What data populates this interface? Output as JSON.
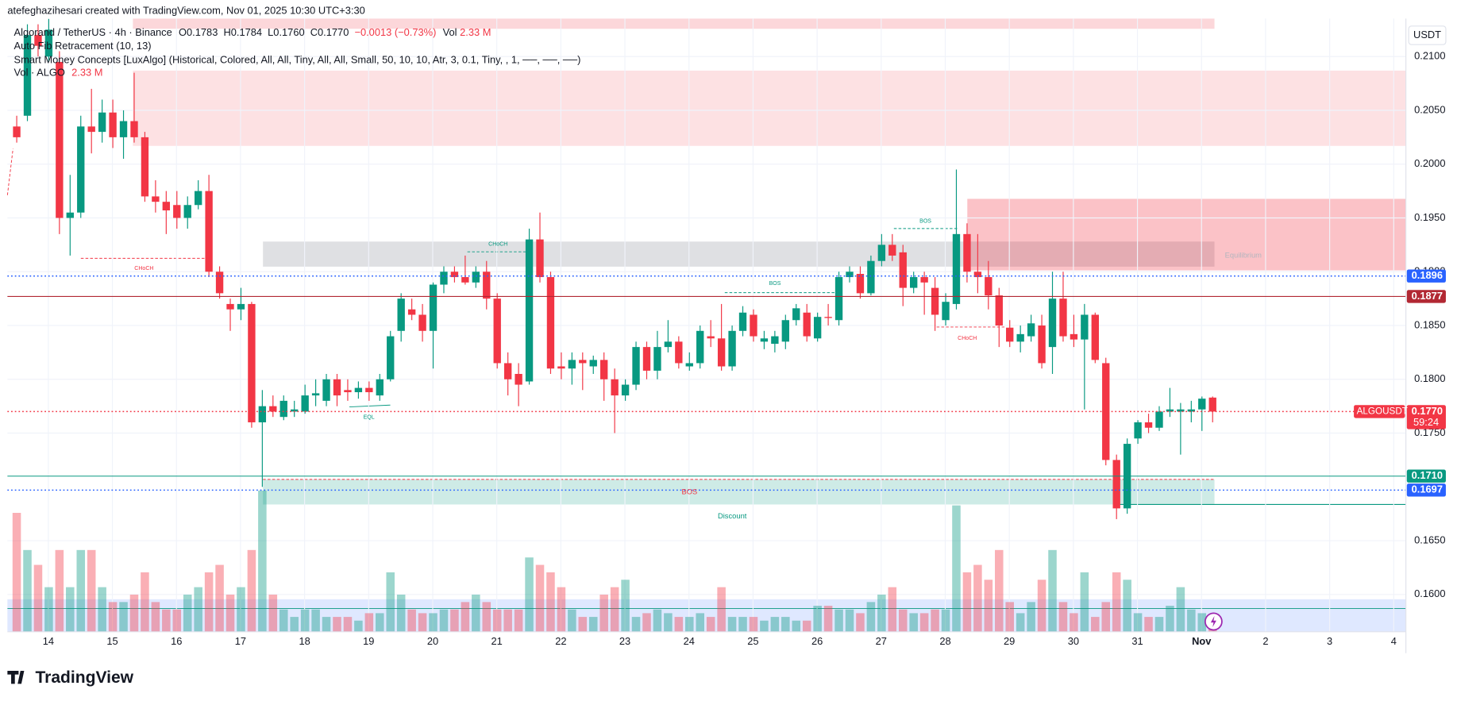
{
  "header": "atefeghazihesari created with TradingView.com, Nov 01, 2025 10:30 UTC+3:30",
  "legend": {
    "symbol": "Algorand / TetherUS · 4h · Binance",
    "open": "O0.1783",
    "high": "H0.1784",
    "low": "L0.1760",
    "close": "C0.1770",
    "change": "−0.0013 (−0.73%)",
    "volume_label": "Vol",
    "volume_value": "2.33 M",
    "indicators": [
      "Auto Fib Retracement (10, 13)",
      "Smart Money Concepts [LuxAlgo] (Historical, Colored, All, All, Tiny, All, All, Small, 50, 10, 10, Atr, 3, 0.1, Tiny, , 1, ──, ──, ──)"
    ],
    "vol_name": "Vol · ALGO",
    "vol_value": "2.33 M"
  },
  "currency": "USDT",
  "logo": "TradingView",
  "annotations": [
    "CHoCH",
    "CHoCH",
    "EQL",
    "BOS",
    "BOS",
    "CHoCH",
    "BOS",
    "Discount",
    "Equilibrium"
  ],
  "chart_data": {
    "type": "candlestick",
    "up_color": "#089981",
    "down_color": "#f23645",
    "candles": [
      [
        0.2035,
        0.2045,
        0.202,
        0.2025
      ],
      [
        0.2045,
        0.213,
        0.204,
        0.212
      ],
      [
        0.212,
        0.213,
        0.21,
        0.211
      ],
      [
        0.21,
        0.2135,
        0.2095,
        0.2125
      ],
      [
        0.2095,
        0.2105,
        0.1935,
        0.195
      ],
      [
        0.195,
        0.199,
        0.1915,
        0.1955
      ],
      [
        0.1955,
        0.2045,
        0.195,
        0.2035
      ],
      [
        0.2035,
        0.207,
        0.201,
        0.203
      ],
      [
        0.203,
        0.206,
        0.202,
        0.2048
      ],
      [
        0.2048,
        0.206,
        0.2015,
        0.2025
      ],
      [
        0.2025,
        0.205,
        0.2005,
        0.204
      ],
      [
        0.204,
        0.2085,
        0.202,
        0.2025
      ],
      [
        0.2025,
        0.203,
        0.1965,
        0.197
      ],
      [
        0.197,
        0.1985,
        0.1955,
        0.1965
      ],
      [
        0.1965,
        0.1975,
        0.1935,
        0.1957
      ],
      [
        0.1962,
        0.1975,
        0.194,
        0.195
      ],
      [
        0.195,
        0.197,
        0.194,
        0.1962
      ],
      [
        0.1962,
        0.1985,
        0.1958,
        0.1975
      ],
      [
        0.1975,
        0.199,
        0.1895,
        0.19
      ],
      [
        0.19,
        0.1905,
        0.1875,
        0.188
      ],
      [
        0.187,
        0.1875,
        0.1845,
        0.1865
      ],
      [
        0.1865,
        0.1885,
        0.1855,
        0.187
      ],
      [
        0.187,
        0.1872,
        0.1755,
        0.176
      ],
      [
        0.176,
        0.179,
        0.17,
        0.1775
      ],
      [
        0.1775,
        0.1785,
        0.1765,
        0.177
      ],
      [
        0.1765,
        0.1785,
        0.1762,
        0.178
      ],
      [
        0.177,
        0.178,
        0.1765,
        0.1772
      ],
      [
        0.177,
        0.1795,
        0.1768,
        0.1785
      ],
      [
        0.1785,
        0.18,
        0.1775,
        0.1787
      ],
      [
        0.178,
        0.1805,
        0.1775,
        0.18
      ],
      [
        0.18,
        0.1805,
        0.1775,
        0.1785
      ],
      [
        0.179,
        0.18,
        0.178,
        0.1788
      ],
      [
        0.1788,
        0.1798,
        0.1782,
        0.1792
      ],
      [
        0.1792,
        0.1798,
        0.178,
        0.1788
      ],
      [
        0.1785,
        0.1805,
        0.178,
        0.18
      ],
      [
        0.18,
        0.1845,
        0.1798,
        0.184
      ],
      [
        0.1845,
        0.188,
        0.1835,
        0.1875
      ],
      [
        0.1865,
        0.1875,
        0.1855,
        0.186
      ],
      [
        0.186,
        0.187,
        0.1835,
        0.1845
      ],
      [
        0.1845,
        0.189,
        0.181,
        0.1888
      ],
      [
        0.1888,
        0.1905,
        0.188,
        0.19
      ],
      [
        0.19,
        0.1905,
        0.189,
        0.1895
      ],
      [
        0.1895,
        0.1915,
        0.1888,
        0.189
      ],
      [
        0.189,
        0.1905,
        0.1885,
        0.19
      ],
      [
        0.19,
        0.191,
        0.1865,
        0.1875
      ],
      [
        0.1875,
        0.188,
        0.181,
        0.1815
      ],
      [
        0.1815,
        0.1825,
        0.1785,
        0.18
      ],
      [
        0.1805,
        0.1815,
        0.1775,
        0.1795
      ],
      [
        0.1798,
        0.194,
        0.1795,
        0.193
      ],
      [
        0.193,
        0.1955,
        0.189,
        0.1895
      ],
      [
        0.1895,
        0.19,
        0.1805,
        0.181
      ],
      [
        0.1812,
        0.1825,
        0.18,
        0.181
      ],
      [
        0.181,
        0.1825,
        0.1795,
        0.1818
      ],
      [
        0.1818,
        0.1825,
        0.179,
        0.1815
      ],
      [
        0.1812,
        0.1822,
        0.1805,
        0.1818
      ],
      [
        0.1818,
        0.1825,
        0.178,
        0.18
      ],
      [
        0.18,
        0.181,
        0.175,
        0.1785
      ],
      [
        0.1785,
        0.18,
        0.178,
        0.1795
      ],
      [
        0.1795,
        0.1835,
        0.179,
        0.183
      ],
      [
        0.183,
        0.1835,
        0.18,
        0.1808
      ],
      [
        0.1808,
        0.1845,
        0.18,
        0.183
      ],
      [
        0.183,
        0.1855,
        0.1825,
        0.1835
      ],
      [
        0.1835,
        0.184,
        0.181,
        0.1815
      ],
      [
        0.1812,
        0.1825,
        0.1808,
        0.1815
      ],
      [
        0.1815,
        0.185,
        0.181,
        0.1845
      ],
      [
        0.184,
        0.1855,
        0.183,
        0.1838
      ],
      [
        0.1838,
        0.187,
        0.1808,
        0.1812
      ],
      [
        0.1812,
        0.185,
        0.1808,
        0.1845
      ],
      [
        0.1845,
        0.1868,
        0.184,
        0.1862
      ],
      [
        0.186,
        0.1865,
        0.1835,
        0.184
      ],
      [
        0.1835,
        0.1845,
        0.1828,
        0.1838
      ],
      [
        0.1833,
        0.1845,
        0.1825,
        0.184
      ],
      [
        0.1835,
        0.186,
        0.1828,
        0.1855
      ],
      [
        0.1855,
        0.187,
        0.185,
        0.1866
      ],
      [
        0.1862,
        0.187,
        0.1835,
        0.184
      ],
      [
        0.1838,
        0.1862,
        0.1835,
        0.1858
      ],
      [
        0.1858,
        0.187,
        0.185,
        0.1857
      ],
      [
        0.1855,
        0.19,
        0.185,
        0.1895
      ],
      [
        0.1895,
        0.1905,
        0.189,
        0.19
      ],
      [
        0.1898,
        0.1905,
        0.1875,
        0.188
      ],
      [
        0.188,
        0.1915,
        0.1878,
        0.191
      ],
      [
        0.191,
        0.1935,
        0.1905,
        0.1925
      ],
      [
        0.1925,
        0.1935,
        0.191,
        0.1915
      ],
      [
        0.1918,
        0.1925,
        0.1868,
        0.1885
      ],
      [
        0.1885,
        0.19,
        0.188,
        0.1895
      ],
      [
        0.1895,
        0.19,
        0.186,
        0.189
      ],
      [
        0.1885,
        0.1895,
        0.1845,
        0.186
      ],
      [
        0.1855,
        0.188,
        0.185,
        0.1872
      ],
      [
        0.187,
        0.1995,
        0.1865,
        0.1935
      ],
      [
        0.1935,
        0.1945,
        0.189,
        0.19
      ],
      [
        0.19,
        0.1935,
        0.188,
        0.1895
      ],
      [
        0.1895,
        0.191,
        0.1865,
        0.1878
      ],
      [
        0.1878,
        0.1885,
        0.183,
        0.185
      ],
      [
        0.1848,
        0.1855,
        0.183,
        0.1835
      ],
      [
        0.1835,
        0.185,
        0.1825,
        0.1842
      ],
      [
        0.184,
        0.186,
        0.1835,
        0.1852
      ],
      [
        0.185,
        0.186,
        0.181,
        0.1815
      ],
      [
        0.183,
        0.19,
        0.1805,
        0.1875
      ],
      [
        0.1875,
        0.19,
        0.1835,
        0.184
      ],
      [
        0.1842,
        0.186,
        0.183,
        0.1837
      ],
      [
        0.1837,
        0.187,
        0.1772,
        0.186
      ],
      [
        0.186,
        0.1862,
        0.1815,
        0.1818
      ],
      [
        0.1815,
        0.182,
        0.172,
        0.1725
      ],
      [
        0.1725,
        0.173,
        0.167,
        0.168
      ],
      [
        0.168,
        0.1745,
        0.1675,
        0.174
      ],
      [
        0.1745,
        0.1762,
        0.174,
        0.176
      ],
      [
        0.176,
        0.1768,
        0.175,
        0.1755
      ],
      [
        0.1755,
        0.1775,
        0.1752,
        0.177
      ],
      [
        0.177,
        0.1792,
        0.1765,
        0.1772
      ],
      [
        0.177,
        0.1778,
        0.173,
        0.1772
      ],
      [
        0.177,
        0.178,
        0.176,
        0.1772
      ],
      [
        0.1772,
        0.1784,
        0.1752,
        0.1782
      ],
      [
        0.1783,
        0.1784,
        0.176,
        0.177
      ]
    ],
    "volumes": [
      16,
      11,
      9,
      6,
      11,
      6,
      11,
      11,
      6,
      4,
      4,
      5,
      8,
      4,
      3,
      3,
      5,
      6,
      8,
      9,
      5,
      6,
      11,
      19,
      5,
      3,
      2,
      3,
      3,
      2,
      2,
      2,
      1.5,
      2.5,
      2.5,
      8,
      5,
      3,
      2.5,
      2.5,
      3,
      3,
      4,
      5,
      4,
      3,
      3,
      3,
      10,
      9,
      8,
      6,
      3,
      2,
      2,
      5,
      6,
      7,
      2,
      2.5,
      3,
      2.5,
      2,
      2,
      2.5,
      2,
      6,
      2,
      2,
      2,
      1.5,
      2,
      2,
      1.5,
      1.5,
      3.5,
      3.5,
      3,
      3,
      2.5,
      4,
      5,
      6,
      3,
      2.5,
      2.5,
      3,
      3,
      17,
      8,
      9,
      7,
      11,
      4,
      2.5,
      4,
      7,
      11,
      4,
      2.5,
      8,
      2,
      4,
      8,
      7,
      2.5,
      2,
      2,
      3.5,
      6,
      3,
      2.5,
      2
    ],
    "volume_lim": [
      0,
      20
    ],
    "xlim": [
      -0.87,
      130.1
    ],
    "xticks": [
      {
        "value": 2.96,
        "label": "14"
      },
      {
        "value": 8.96,
        "label": "15"
      },
      {
        "value": 14.96,
        "label": "16"
      },
      {
        "value": 20.96,
        "label": "17"
      },
      {
        "value": 26.96,
        "label": "18"
      },
      {
        "value": 32.96,
        "label": "19"
      },
      {
        "value": 38.96,
        "label": "20"
      },
      {
        "value": 44.96,
        "label": "21"
      },
      {
        "value": 50.96,
        "label": "22"
      },
      {
        "value": 56.96,
        "label": "23"
      },
      {
        "value": 62.96,
        "label": "24"
      },
      {
        "value": 68.96,
        "label": "25"
      },
      {
        "value": 74.96,
        "label": "26"
      },
      {
        "value": 80.96,
        "label": "27"
      },
      {
        "value": 86.96,
        "label": "28"
      },
      {
        "value": 92.96,
        "label": "29"
      },
      {
        "value": 98.96,
        "label": "30"
      },
      {
        "value": 104.96,
        "label": "31"
      },
      {
        "value": 110.96,
        "label": "Nov"
      },
      {
        "value": 116.96,
        "label": "2"
      },
      {
        "value": 122.96,
        "label": "3"
      },
      {
        "value": 128.96,
        "label": "4"
      }
    ],
    "ylim": [
      0.15653,
      0.21353
    ],
    "yticks": [
      {
        "value": 0.21,
        "label": "0.2100"
      },
      {
        "value": 0.205,
        "label": "0.2050"
      },
      {
        "value": 0.2,
        "label": "0.2000"
      },
      {
        "value": 0.195,
        "label": "0.1950"
      },
      {
        "value": 0.19,
        "label": "0.1900"
      },
      {
        "value": 0.185,
        "label": "0.1850"
      },
      {
        "value": 0.18,
        "label": "0.1800"
      },
      {
        "value": 0.175,
        "label": "0.1750"
      },
      {
        "value": 0.165,
        "label": "0.1650"
      },
      {
        "value": 0.16,
        "label": "0.1600"
      }
    ],
    "grid": true,
    "price_lines": [
      {
        "value": 0.1896,
        "color": "#2962ff",
        "style": "dotted"
      },
      {
        "value": 0.1877,
        "color": "#b22833",
        "style": "solid"
      },
      {
        "value": 0.177,
        "label": "0.1770",
        "color": "#f23645",
        "style": "dotted",
        "name": "ALGOUSDT",
        "countdown": "59:24"
      },
      {
        "value": 0.171,
        "label": "0.1710",
        "color": "#089981",
        "style": "solid"
      },
      {
        "value": 0.1697,
        "color": "#2962ff",
        "style": "dotted"
      }
    ]
  }
}
